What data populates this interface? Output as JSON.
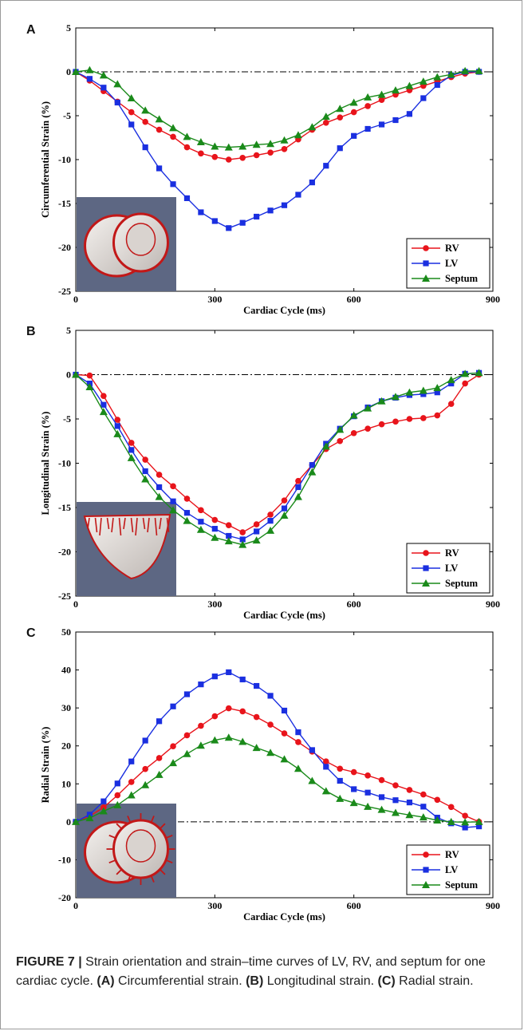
{
  "figure": {
    "caption_label": "FIGURE 7 |",
    "caption_text": " Strain orientation and strain–time curves of LV, RV, and septum for one cardiac cycle. ",
    "caption_parts": [
      {
        "bold": "(A)",
        "text": " Circumferential strain. "
      },
      {
        "bold": "(B)",
        "text": " Longitudinal strain. "
      },
      {
        "bold": "(C)",
        "text": " Radial strain."
      }
    ]
  },
  "colors": {
    "RV": "#e8141b",
    "LV": "#1a2fe0",
    "Septum": "#1a8a1a",
    "inset_bg": "#5d6783"
  },
  "chart_data": [
    {
      "panel": "A",
      "type": "line",
      "title": "",
      "xlabel": "Cardiac Cycle (ms)",
      "ylabel": "Circumferential Strain (%)",
      "xlim": [
        0,
        900
      ],
      "ylim": [
        -25,
        5
      ],
      "xticks": [
        0,
        300,
        600,
        900
      ],
      "yticks": [
        5,
        0,
        -5,
        -10,
        -15,
        -20,
        -25
      ],
      "zero_line": "dash-dot",
      "legend_position": "lower-right",
      "inset": "circumferential",
      "series": [
        {
          "name": "RV",
          "marker": "circle",
          "x": [
            0,
            30,
            60,
            90,
            120,
            150,
            180,
            210,
            240,
            270,
            300,
            330,
            360,
            390,
            420,
            450,
            480,
            510,
            540,
            570,
            600,
            630,
            660,
            690,
            720,
            750,
            780,
            810,
            840,
            870
          ],
          "y": [
            0,
            -1.0,
            -2.2,
            -3.4,
            -4.6,
            -5.7,
            -6.6,
            -7.4,
            -8.6,
            -9.3,
            -9.7,
            -10.0,
            -9.8,
            -9.5,
            -9.2,
            -8.8,
            -7.7,
            -6.6,
            -5.8,
            -5.2,
            -4.6,
            -3.9,
            -3.2,
            -2.6,
            -2.1,
            -1.6,
            -1.1,
            -0.6,
            -0.2,
            0
          ]
        },
        {
          "name": "LV",
          "marker": "square",
          "x": [
            0,
            30,
            60,
            90,
            120,
            150,
            180,
            210,
            240,
            270,
            300,
            330,
            360,
            390,
            420,
            450,
            480,
            510,
            540,
            570,
            600,
            630,
            660,
            690,
            720,
            750,
            780,
            810,
            840,
            870
          ],
          "y": [
            0,
            -0.8,
            -1.8,
            -3.5,
            -6.0,
            -8.6,
            -11.0,
            -12.8,
            -14.4,
            -16.0,
            -17.0,
            -17.8,
            -17.2,
            -16.5,
            -15.8,
            -15.2,
            -14.0,
            -12.6,
            -10.7,
            -8.7,
            -7.3,
            -6.5,
            -6.0,
            -5.5,
            -4.8,
            -3.0,
            -1.5,
            -0.4,
            0,
            0
          ]
        },
        {
          "name": "Septum",
          "marker": "triangle",
          "x": [
            0,
            30,
            60,
            90,
            120,
            150,
            180,
            210,
            240,
            270,
            300,
            330,
            360,
            390,
            420,
            450,
            480,
            510,
            540,
            570,
            600,
            630,
            660,
            690,
            720,
            750,
            780,
            810,
            840,
            870
          ],
          "y": [
            0,
            0.2,
            -0.4,
            -1.4,
            -3.0,
            -4.4,
            -5.4,
            -6.4,
            -7.4,
            -8.0,
            -8.5,
            -8.6,
            -8.5,
            -8.3,
            -8.2,
            -7.8,
            -7.2,
            -6.3,
            -5.1,
            -4.2,
            -3.5,
            -2.9,
            -2.6,
            -2.1,
            -1.6,
            -1.1,
            -0.6,
            -0.3,
            0.1,
            0.1
          ]
        }
      ]
    },
    {
      "panel": "B",
      "type": "line",
      "title": "",
      "xlabel": "Cardiac Cycle (ms)",
      "ylabel": "Longitudinal Strain (%)",
      "xlim": [
        0,
        900
      ],
      "ylim": [
        -25,
        5
      ],
      "xticks": [
        0,
        300,
        600,
        900
      ],
      "yticks": [
        5,
        0,
        -5,
        -10,
        -15,
        -20,
        -25
      ],
      "zero_line": "dash-dot",
      "legend_position": "lower-right",
      "inset": "longitudinal",
      "series": [
        {
          "name": "RV",
          "marker": "circle",
          "x": [
            0,
            30,
            60,
            90,
            120,
            150,
            180,
            210,
            240,
            270,
            300,
            330,
            360,
            390,
            420,
            450,
            480,
            510,
            540,
            570,
            600,
            630,
            660,
            690,
            720,
            750,
            780,
            810,
            840,
            870
          ],
          "y": [
            0,
            -0.1,
            -2.4,
            -5.1,
            -7.7,
            -9.6,
            -11.3,
            -12.6,
            -14.0,
            -15.3,
            -16.4,
            -17.0,
            -17.8,
            -16.9,
            -15.8,
            -14.2,
            -12.0,
            -10.2,
            -8.4,
            -7.5,
            -6.6,
            -6.1,
            -5.6,
            -5.3,
            -5.0,
            -4.9,
            -4.6,
            -3.3,
            -1.0,
            0
          ]
        },
        {
          "name": "LV",
          "marker": "square",
          "x": [
            0,
            30,
            60,
            90,
            120,
            150,
            180,
            210,
            240,
            270,
            300,
            330,
            360,
            390,
            420,
            450,
            480,
            510,
            540,
            570,
            600,
            630,
            660,
            690,
            720,
            750,
            780,
            810,
            840,
            870
          ],
          "y": [
            0,
            -1.0,
            -3.4,
            -5.8,
            -8.5,
            -10.9,
            -12.7,
            -14.3,
            -15.6,
            -16.6,
            -17.4,
            -18.2,
            -18.6,
            -17.7,
            -16.5,
            -15.1,
            -12.7,
            -10.2,
            -7.8,
            -6.1,
            -4.7,
            -3.7,
            -3.0,
            -2.6,
            -2.3,
            -2.2,
            -2.0,
            -1.0,
            0.1,
            0.2
          ]
        },
        {
          "name": "Septum",
          "marker": "triangle",
          "x": [
            0,
            30,
            60,
            90,
            120,
            150,
            180,
            210,
            240,
            270,
            300,
            330,
            360,
            390,
            420,
            450,
            480,
            510,
            540,
            570,
            600,
            630,
            660,
            690,
            720,
            750,
            780,
            810,
            840,
            870
          ],
          "y": [
            0,
            -1.4,
            -4.2,
            -6.7,
            -9.4,
            -11.8,
            -13.8,
            -15.3,
            -16.5,
            -17.5,
            -18.4,
            -18.8,
            -19.2,
            -18.7,
            -17.6,
            -15.9,
            -13.8,
            -11.0,
            -8.1,
            -6.2,
            -4.6,
            -3.8,
            -3.0,
            -2.5,
            -2.0,
            -1.8,
            -1.5,
            -0.6,
            0.1,
            0.2
          ]
        }
      ]
    },
    {
      "panel": "C",
      "type": "line",
      "title": "",
      "xlabel": "Cardiac Cycle (ms)",
      "ylabel": "Radial Strain (%)",
      "xlim": [
        0,
        900
      ],
      "ylim": [
        -20,
        50
      ],
      "xticks": [
        0,
        300,
        600,
        900
      ],
      "yticks": [
        50,
        40,
        30,
        20,
        10,
        0,
        -10,
        -20
      ],
      "zero_line": "dash-dot",
      "legend_position": "lower-right",
      "inset": "radial",
      "series": [
        {
          "name": "RV",
          "marker": "circle",
          "x": [
            0,
            30,
            60,
            90,
            120,
            150,
            180,
            210,
            240,
            270,
            300,
            330,
            360,
            390,
            420,
            450,
            480,
            510,
            540,
            570,
            600,
            630,
            660,
            690,
            720,
            750,
            780,
            810,
            840,
            870
          ],
          "y": [
            0,
            1.5,
            3.8,
            7.0,
            10.5,
            13.9,
            16.8,
            19.9,
            22.8,
            25.3,
            27.8,
            29.9,
            29.1,
            27.6,
            25.6,
            23.3,
            21.0,
            18.5,
            15.9,
            14.0,
            13.1,
            12.2,
            11.0,
            9.6,
            8.4,
            7.2,
            5.8,
            3.9,
            1.6,
            0
          ]
        },
        {
          "name": "LV",
          "marker": "square",
          "x": [
            0,
            30,
            60,
            90,
            120,
            150,
            180,
            210,
            240,
            270,
            300,
            330,
            360,
            390,
            420,
            450,
            480,
            510,
            540,
            570,
            600,
            630,
            660,
            690,
            720,
            750,
            780,
            810,
            840,
            870
          ],
          "y": [
            0,
            1.9,
            5.4,
            10.1,
            15.9,
            21.4,
            26.5,
            30.4,
            33.6,
            36.2,
            38.3,
            39.4,
            37.5,
            35.8,
            33.2,
            29.3,
            23.6,
            18.9,
            14.5,
            10.8,
            8.6,
            7.7,
            6.5,
            5.7,
            5.1,
            4.0,
            1.1,
            -0.4,
            -1.5,
            -1.2
          ]
        },
        {
          "name": "Septum",
          "marker": "triangle",
          "x": [
            0,
            30,
            60,
            90,
            120,
            150,
            180,
            210,
            240,
            270,
            300,
            330,
            360,
            390,
            420,
            450,
            480,
            510,
            540,
            570,
            600,
            630,
            660,
            690,
            720,
            750,
            780,
            810,
            840,
            870
          ],
          "y": [
            0,
            1.0,
            2.8,
            4.4,
            7.0,
            9.7,
            12.4,
            15.5,
            17.9,
            20.1,
            21.5,
            22.2,
            21.1,
            19.5,
            18.2,
            16.5,
            14.0,
            10.8,
            8.1,
            6.1,
            5.0,
            4.0,
            3.2,
            2.4,
            1.8,
            1.2,
            0.4,
            0,
            -0.1,
            0
          ]
        }
      ]
    }
  ]
}
